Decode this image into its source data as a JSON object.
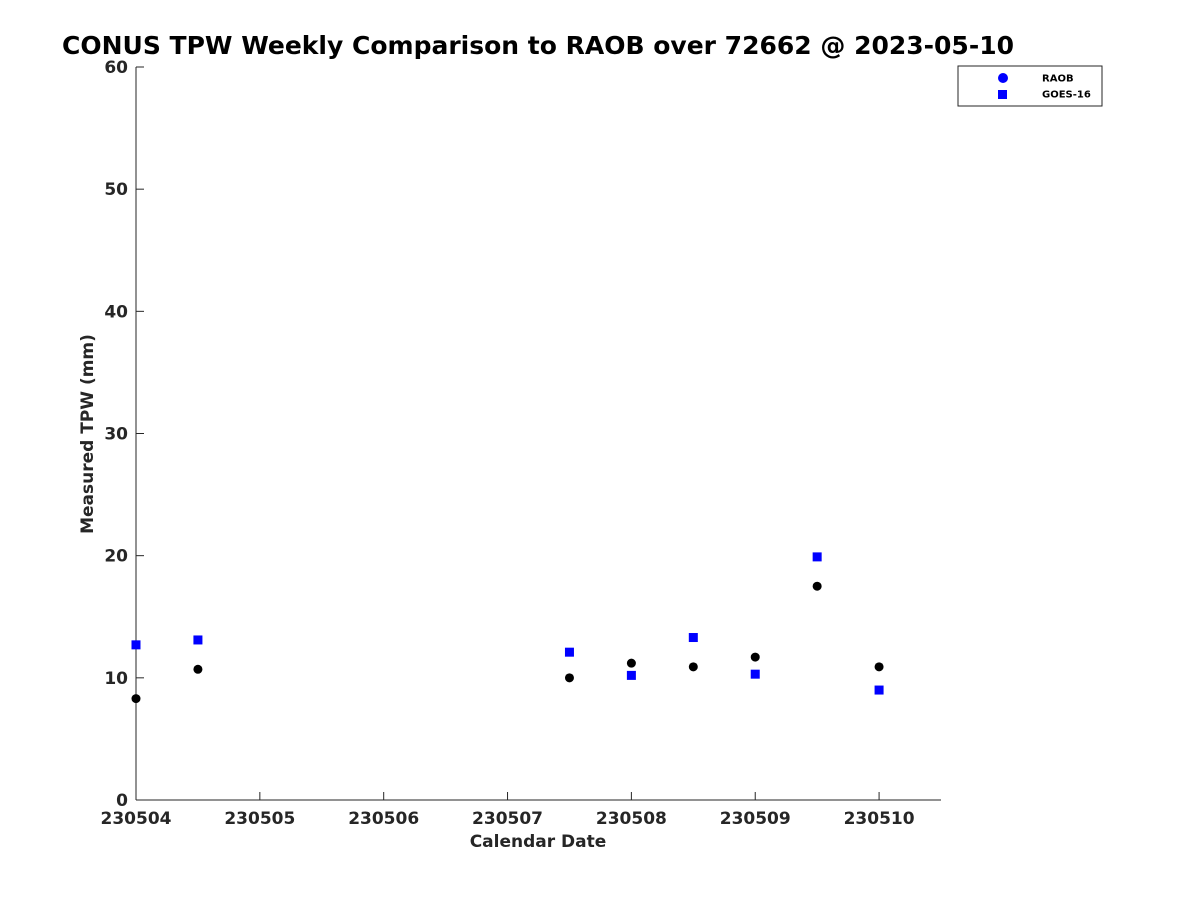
{
  "chart_data": {
    "type": "scatter",
    "title": "CONUS TPW Weekly Comparison to RAOB over 72662 @ 2023-05-10",
    "xlabel": "Calendar Date",
    "ylabel": "Measured TPW (mm)",
    "xlim": [
      "2023-05-04",
      "2023-05-10 12:00"
    ],
    "ylim": [
      0,
      60
    ],
    "x_tick_values": [
      "2023-05-04",
      "2023-05-05",
      "2023-05-06",
      "2023-05-07",
      "2023-05-08",
      "2023-05-09",
      "2023-05-10"
    ],
    "x_tick_labels": [
      "230504",
      "230505",
      "230506",
      "230507",
      "230508",
      "230509",
      "230510"
    ],
    "y_ticks": [
      0,
      10,
      20,
      30,
      40,
      50,
      60
    ],
    "grid": false,
    "legend_position": "top-right",
    "series": [
      {
        "name": "RAOB",
        "marker": "circle",
        "color": "#000000",
        "legend_color": "#0000ff",
        "points": [
          {
            "x": "2023-05-04 00:00",
            "y": 8.3
          },
          {
            "x": "2023-05-04 12:00",
            "y": 10.7
          },
          {
            "x": "2023-05-07 12:00",
            "y": 10.0
          },
          {
            "x": "2023-05-08 00:00",
            "y": 11.2
          },
          {
            "x": "2023-05-08 12:00",
            "y": 10.9
          },
          {
            "x": "2023-05-09 00:00",
            "y": 11.7
          },
          {
            "x": "2023-05-09 12:00",
            "y": 17.5
          },
          {
            "x": "2023-05-10 00:00",
            "y": 10.9
          }
        ]
      },
      {
        "name": "GOES-16",
        "marker": "square",
        "color": "#0000ff",
        "legend_color": "#0000ff",
        "points": [
          {
            "x": "2023-05-04 00:00",
            "y": 12.7
          },
          {
            "x": "2023-05-04 12:00",
            "y": 13.1
          },
          {
            "x": "2023-05-07 12:00",
            "y": 12.1
          },
          {
            "x": "2023-05-08 00:00",
            "y": 10.2
          },
          {
            "x": "2023-05-08 12:00",
            "y": 13.3
          },
          {
            "x": "2023-05-09 00:00",
            "y": 10.3
          },
          {
            "x": "2023-05-09 12:00",
            "y": 19.9
          },
          {
            "x": "2023-05-10 00:00",
            "y": 9.0
          }
        ]
      }
    ]
  }
}
